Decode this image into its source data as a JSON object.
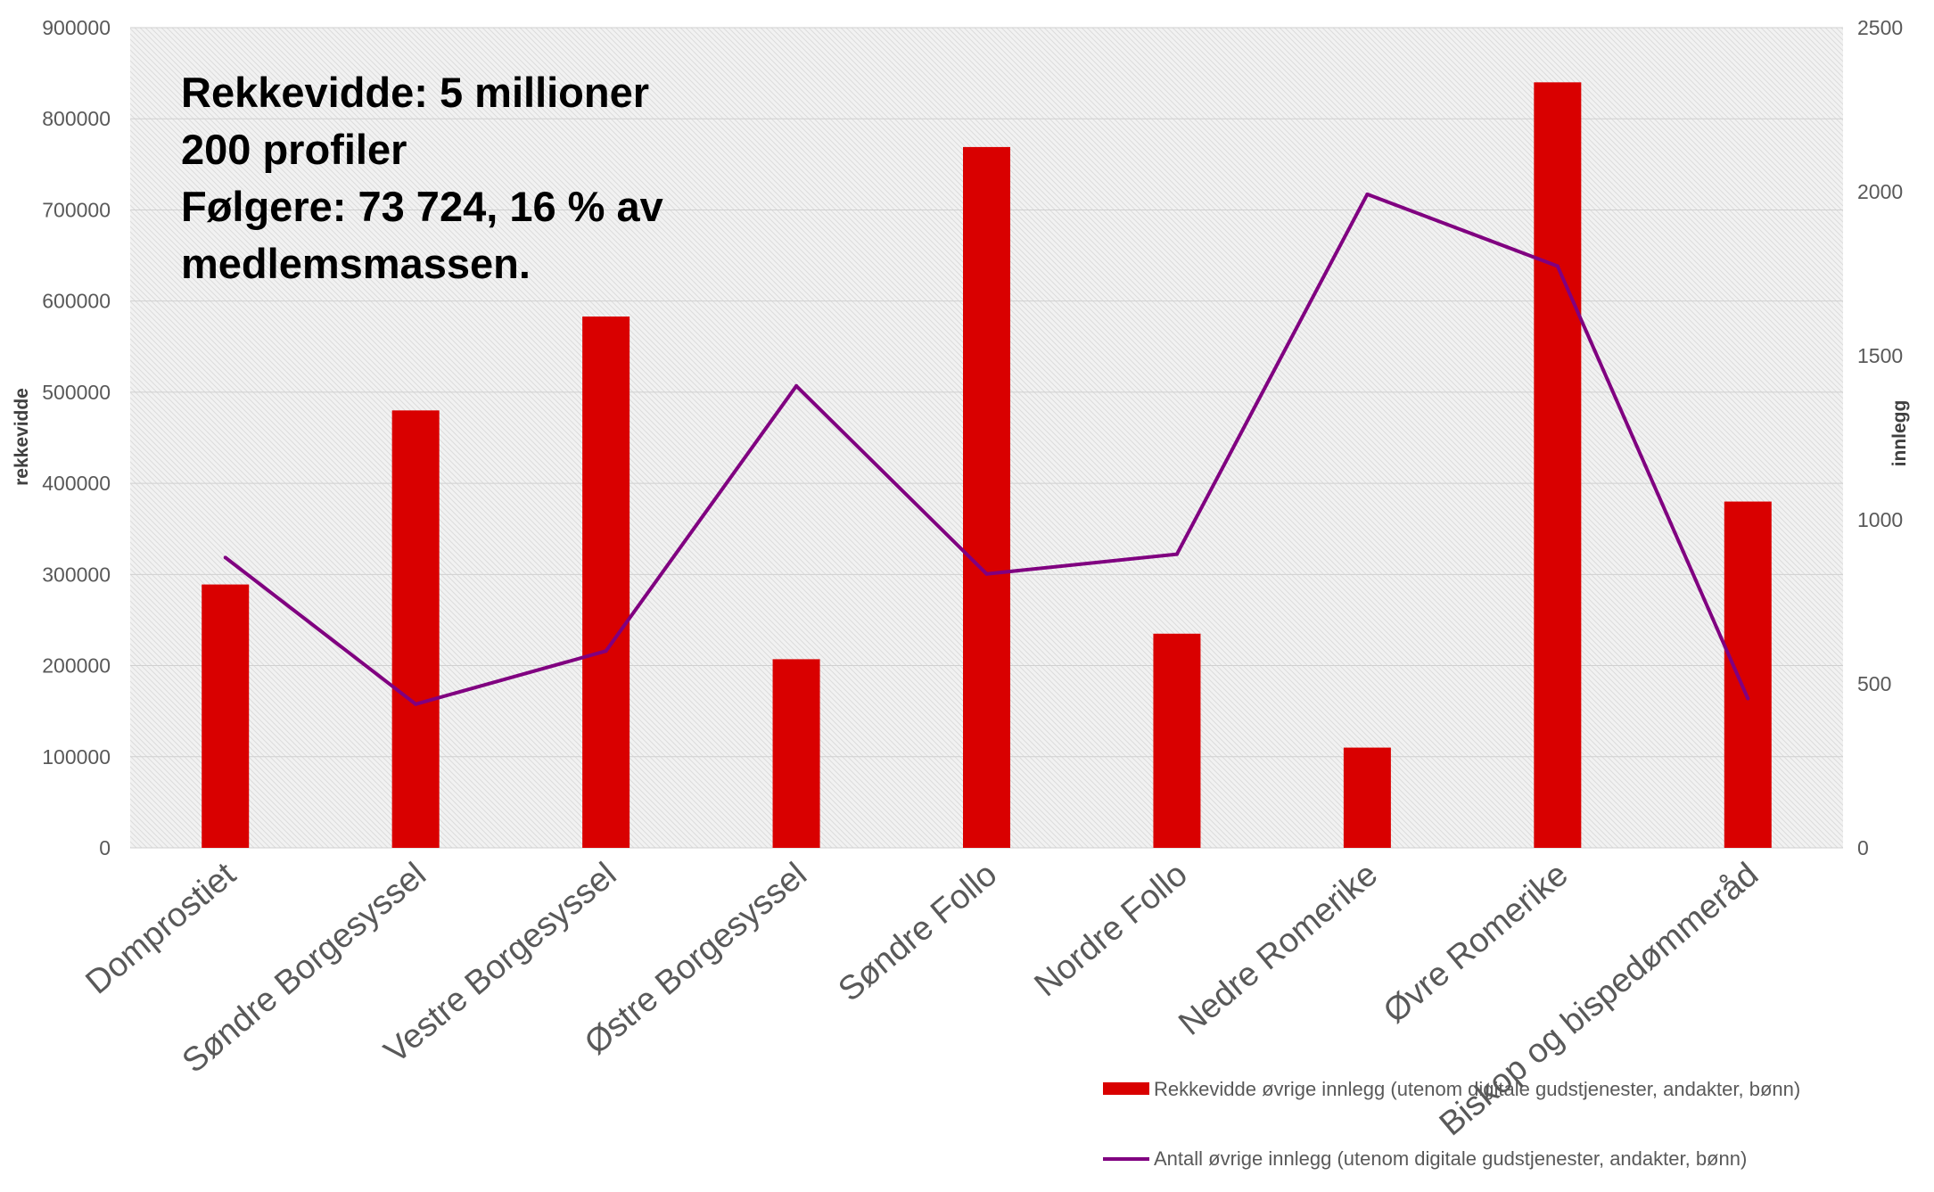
{
  "chart_data": {
    "type": "bar",
    "categories": [
      "Domprostiet",
      "Søndre Borgesyssel",
      "Vestre Borgesyssel",
      "Østre Borgesyssel",
      "Søndre Follo",
      "Nordre Follo",
      "Nedre Romerike",
      "Øvre Romerike",
      "Biskop og bispedømmeråd"
    ],
    "series": [
      {
        "name": "Rekkevidde øvrige innlegg (utenom digitale gudstjenester, andakter, bønn)",
        "type": "bar",
        "axis": "left",
        "color": "#d90000",
        "values": [
          289000,
          480000,
          583000,
          207000,
          769000,
          235000,
          110000,
          840000,
          380000
        ]
      },
      {
        "name": "Antall øvrige innlegg (utenom digitale gudstjenester, andakter, bønn)",
        "type": "line",
        "axis": "right",
        "color": "#800080",
        "values": [
          885,
          438,
          600,
          1408,
          835,
          895,
          1992,
          1773,
          455
        ]
      }
    ],
    "ylabel": "rekkevidde",
    "y2label": "innlegg",
    "ylim": [
      0,
      900000
    ],
    "y2lim": [
      0,
      2500
    ],
    "yticks": [
      "0",
      "100000",
      "200000",
      "300000",
      "400000",
      "500000",
      "600000",
      "700000",
      "800000",
      "900000"
    ],
    "y2ticks": [
      "0",
      "500",
      "1000",
      "1500",
      "2000",
      "2500"
    ],
    "grid": true,
    "legend_position": "bottom-right",
    "annotation": [
      "Rekkevidde: 5 millioner",
      "200 profiler",
      "Følgere: 73 724, 16 % av",
      "medlemsmassen."
    ]
  }
}
